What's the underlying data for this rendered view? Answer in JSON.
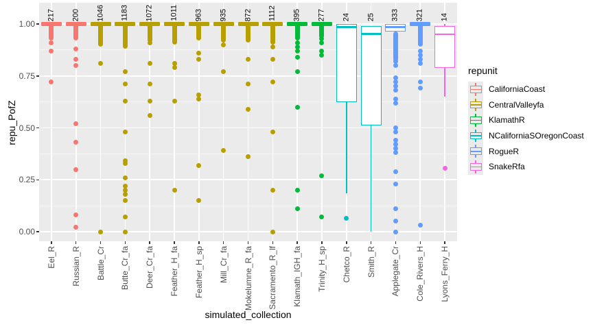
{
  "chart_data": {
    "type": "boxplot",
    "title": "",
    "xlabel": "simulated_collection",
    "ylabel": "repu_PofZ",
    "ylim": [
      0,
      1
    ],
    "grid": true,
    "panel_background": "#EBEBEB",
    "yticks": [
      {
        "value": 0.0,
        "label": "0.00"
      },
      {
        "value": 0.25,
        "label": "0.25"
      },
      {
        "value": 0.5,
        "label": "0.50"
      },
      {
        "value": 0.75,
        "label": "0.75"
      },
      {
        "value": 1.0,
        "label": "1.00"
      }
    ],
    "legend": {
      "title": "repunit",
      "position": "right",
      "entries": [
        {
          "label": "CaliforniaCoast",
          "color": "#F8766D"
        },
        {
          "label": "CentralValleyfa",
          "color": "#B79F00"
        },
        {
          "label": "KlamathR",
          "color": "#00BA38"
        },
        {
          "label": "NCaliforniaSOregonCoast",
          "color": "#00BFC4"
        },
        {
          "label": "RogueR",
          "color": "#619CFF"
        },
        {
          "label": "SnakeRfa",
          "color": "#F564E3"
        }
      ]
    },
    "columns": [
      {
        "label": "Eel_R",
        "count": "217",
        "repunit": "CaliforniaCoast",
        "color": "#F8766D",
        "collapsed": true,
        "streak": [
          1.0,
          0.93
        ],
        "outliers": [
          0.91,
          0.87,
          0.72
        ]
      },
      {
        "label": "Russian_R",
        "count": "200",
        "repunit": "CaliforniaCoast",
        "color": "#F8766D",
        "collapsed": true,
        "streak": [
          1.0,
          0.93
        ],
        "outliers": [
          0.88,
          0.83,
          0.8,
          0.52,
          0.43,
          0.3,
          0.08,
          0.02
        ]
      },
      {
        "label": "Battle_Cr",
        "count": "1046",
        "repunit": "CentralValleyfa",
        "color": "#B79F00",
        "collapsed": true,
        "streak": [
          1.0,
          0.9
        ],
        "outliers": [
          0.81,
          0.0
        ]
      },
      {
        "label": "Butte_Cr_fa",
        "count": "1183",
        "repunit": "CentralValleyfa",
        "color": "#B79F00",
        "collapsed": true,
        "streak": [
          1.0,
          0.89
        ],
        "outliers": [
          0.77,
          0.71,
          0.63,
          0.48,
          0.34,
          0.33,
          0.26,
          0.22,
          0.2,
          0.18,
          0.15,
          0.07,
          0.0
        ]
      },
      {
        "label": "Deer_Cr_fa",
        "count": "1072",
        "repunit": "CentralValleyfa",
        "color": "#B79F00",
        "collapsed": true,
        "streak": [
          1.0,
          0.92
        ],
        "outliers": [
          0.91,
          0.81,
          0.71,
          0.63,
          0.56
        ]
      },
      {
        "label": "Feather_H_fa",
        "count": "1011",
        "repunit": "CentralValleyfa",
        "color": "#B79F00",
        "collapsed": true,
        "streak": [
          1.0,
          0.91
        ],
        "outliers": [
          0.81,
          0.79,
          0.63,
          0.2
        ]
      },
      {
        "label": "Feather_H_sp",
        "count": "963",
        "repunit": "CentralValleyfa",
        "color": "#B79F00",
        "collapsed": true,
        "streak": [
          1.0,
          0.93
        ],
        "outliers": [
          0.86,
          0.83,
          0.66,
          0.64,
          0.32,
          0.15
        ]
      },
      {
        "label": "Mill_Cr_fa",
        "count": "935",
        "repunit": "CentralValleyfa",
        "color": "#B79F00",
        "collapsed": true,
        "streak": [
          1.0,
          0.92
        ],
        "outliers": [
          0.9,
          0.77,
          0.39
        ]
      },
      {
        "label": "Mokelumne_R_fa",
        "count": "872",
        "repunit": "CentralValleyfa",
        "color": "#B79F00",
        "collapsed": true,
        "streak": [
          1.0,
          0.92
        ],
        "outliers": [
          0.83,
          0.71,
          0.59,
          0.36
        ]
      },
      {
        "label": "Sacramento_R_lf",
        "count": "1112",
        "repunit": "CentralValleyfa",
        "color": "#B79F00",
        "collapsed": true,
        "streak": [
          1.0,
          0.91
        ],
        "outliers": [
          0.89,
          0.83,
          0.72,
          0.48,
          0.2,
          0.0
        ]
      },
      {
        "label": "Klamath_IGH_fa",
        "count": "395",
        "repunit": "KlamathR",
        "color": "#00BA38",
        "collapsed": true,
        "streak": [
          1.0,
          0.93
        ],
        "outliers": [
          0.91,
          0.89,
          0.87,
          0.84,
          0.77,
          0.6,
          0.2,
          0.11
        ]
      },
      {
        "label": "Trinity_H_sp",
        "count": "277",
        "repunit": "KlamathR",
        "color": "#00BA38",
        "collapsed": true,
        "streak": [
          1.0,
          0.94
        ],
        "outliers": [
          0.93,
          0.91,
          0.87,
          0.85,
          0.27,
          0.07
        ]
      },
      {
        "label": "Chetco_R",
        "count": "24",
        "repunit": "NCaliforniaSOregonCoast",
        "color": "#00BFC4",
        "box": {
          "hi": 1.0,
          "q3": 1.0,
          "median": 0.985,
          "q1": 0.625,
          "lo": 0.185
        },
        "outliers": [
          0.065
        ]
      },
      {
        "label": "Smith_R",
        "count": "25",
        "repunit": "NCaliforniaSOregonCoast",
        "color": "#00BFC4",
        "box": {
          "hi": 0.99,
          "q3": 0.99,
          "median": 0.952,
          "q1": 0.51,
          "lo": 0.0
        },
        "outliers": []
      },
      {
        "label": "Applegate_Cr",
        "count": "333",
        "repunit": "RogueR",
        "color": "#619CFF",
        "box": {
          "hi": 1.0,
          "q3": 1.0,
          "median": 0.985,
          "q1": 0.965,
          "lo": 0.965
        },
        "streak": [
          0.955,
          0.83
        ],
        "outliers": [
          0.82,
          0.8,
          0.74,
          0.72,
          0.7,
          0.68,
          0.64,
          0.62,
          0.5,
          0.48,
          0.44,
          0.42,
          0.4,
          0.38,
          0.29,
          0.23,
          0.11,
          0.05,
          0.0
        ]
      },
      {
        "label": "Cole_Rivers_H",
        "count": "321",
        "repunit": "RogueR",
        "color": "#619CFF",
        "collapsed": true,
        "streak": [
          1.0,
          0.9
        ],
        "outliers": [
          0.87,
          0.85,
          0.83,
          0.81,
          0.72,
          0.69,
          0.03
        ]
      },
      {
        "label": "Lyons_Ferry_H",
        "count": "14",
        "repunit": "SnakeRfa",
        "color": "#F564E3",
        "box": {
          "hi": 1.0,
          "q3": 0.99,
          "median": 0.95,
          "q1": 0.79,
          "lo": 0.65
        },
        "outliers": [
          0.305
        ]
      }
    ]
  }
}
